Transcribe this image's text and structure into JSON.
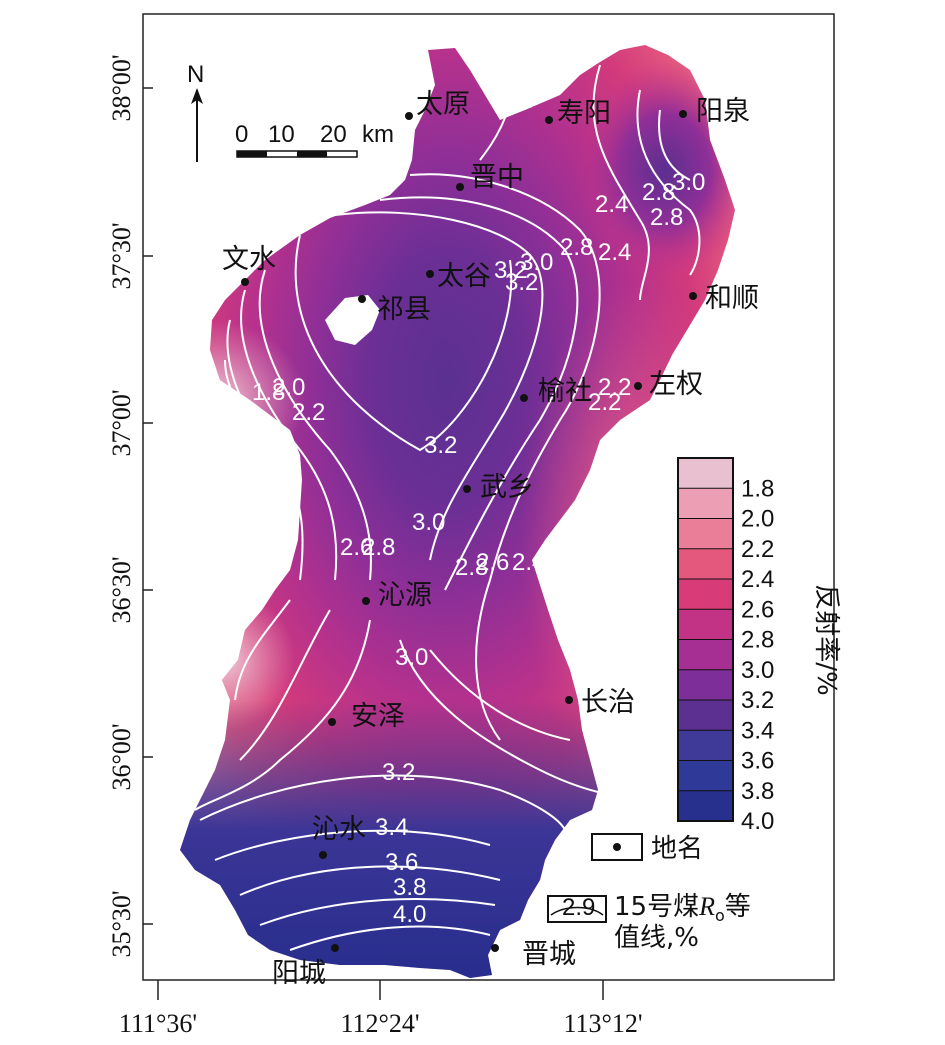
{
  "axes": {
    "y_ticks": [
      "38°00'",
      "37°30'",
      "37°00'",
      "36°30'",
      "36°00'",
      "35°30'"
    ],
    "x_ticks": [
      "111°36'",
      "112°24'",
      "113°12'"
    ]
  },
  "north_label": "N",
  "scale_bar": {
    "labels": [
      "0",
      "10",
      "20"
    ],
    "unit": "km"
  },
  "cities": [
    "太原",
    "寿阳",
    "阳泉",
    "晋中",
    "文水",
    "太谷",
    "祁县",
    "和顺",
    "左权",
    "榆社",
    "武乡",
    "沁源",
    "长治",
    "安泽",
    "沁水",
    "阳城",
    "晋城"
  ],
  "contours": {
    "levels": [
      1.8,
      2.0,
      2.2,
      2.4,
      2.6,
      2.8,
      3.0,
      3.2,
      3.4,
      3.6,
      3.8,
      4.0
    ],
    "labels": [
      "3.0",
      "2.4",
      "2.8",
      "3.0",
      "2.8",
      "3.2",
      "2.8",
      "2.4",
      "3.0",
      "3.2",
      "2.2",
      "1.8",
      "2.0",
      "2.2",
      "3.2",
      "3.0",
      "2.6",
      "2.8",
      "2.8",
      "2.6",
      "2.4",
      "3.0",
      "3.2",
      "3.4",
      "3.6",
      "3.8",
      "4.0",
      "2.2"
    ]
  },
  "legend": {
    "title": "反射率/%",
    "classes": [
      {
        "label": "1.8",
        "color": "#e9c0d0"
      },
      {
        "label": "2.0",
        "color": "#ec9fb4"
      },
      {
        "label": "2.2",
        "color": "#ea7d97"
      },
      {
        "label": "2.4",
        "color": "#e5587d"
      },
      {
        "label": "2.6",
        "color": "#d83c78"
      },
      {
        "label": "2.8",
        "color": "#c23285"
      },
      {
        "label": "3.0",
        "color": "#a52f93"
      },
      {
        "label": "3.2",
        "color": "#7d2e98"
      },
      {
        "label": "3.4",
        "color": "#5c3090"
      },
      {
        "label": "3.6",
        "color": "#3f3a98"
      },
      {
        "label": "3.8",
        "color": "#2f3a98"
      },
      {
        "label": "4.0",
        "color": "#28308e"
      }
    ],
    "place_label": "地名",
    "isoline_sample": "2.9",
    "isoline_label": "15号煤",
    "isoline_symbol": "R",
    "isoline_subscript": "o",
    "isoline_suffix": "等",
    "isoline_line2": "值线,%"
  }
}
